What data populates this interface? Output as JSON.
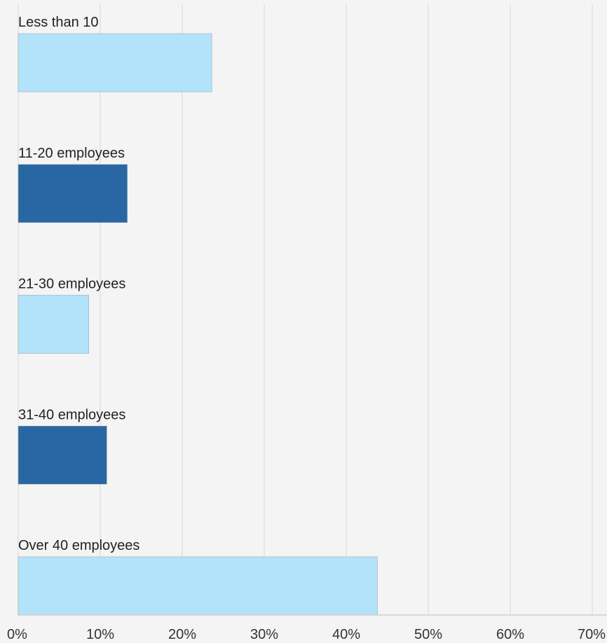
{
  "chart_data": {
    "type": "bar",
    "orientation": "horizontal",
    "categories": [
      "Less than 10",
      "11-20 employees",
      "21-30 employees",
      "31-40 employees",
      "Over 40 employees"
    ],
    "values": [
      23.6,
      13.3,
      8.6,
      10.8,
      43.8
    ],
    "value_unit": "%",
    "xlim": [
      0,
      70
    ],
    "xticks": [
      "0%",
      "10%",
      "20%",
      "30%",
      "40%",
      "50%",
      "60%",
      "70%"
    ],
    "grid": true,
    "title": "",
    "xlabel": "",
    "ylabel": "",
    "colors": [
      "#b3e3fb",
      "#2867a4",
      "#b3e3fb",
      "#2867a4",
      "#b3e3fb"
    ]
  }
}
